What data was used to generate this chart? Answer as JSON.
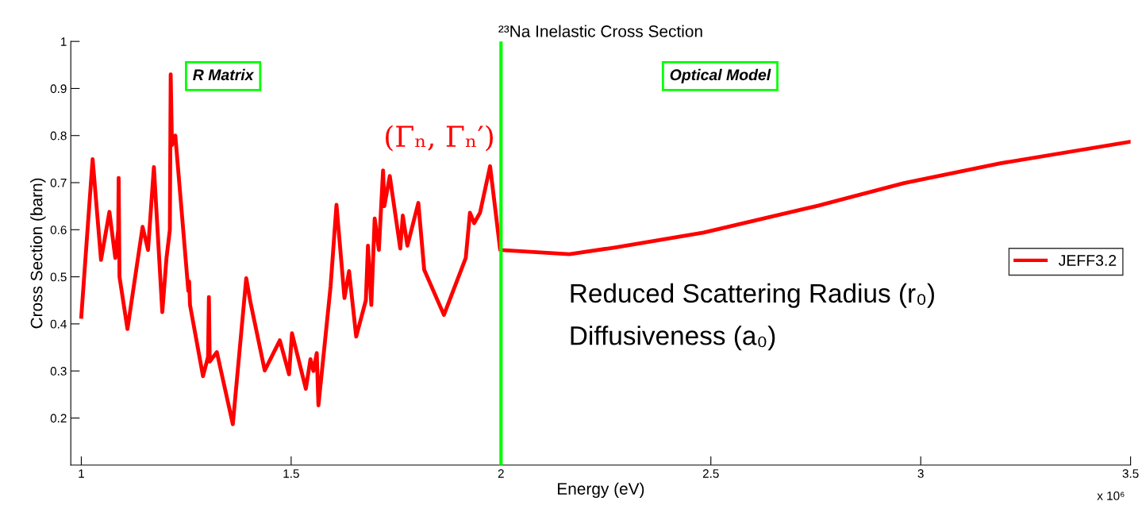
{
  "chart_data": {
    "type": "line",
    "title": "²³Na Inelastic Cross Section",
    "xlabel": "Energy (eV)",
    "ylabel": "Cross Section (barn)",
    "xlim": [
      0.975,
      3.5
    ],
    "ylim": [
      0.1,
      1
    ],
    "xticks": [
      1,
      1.5,
      2,
      2.5,
      3,
      3.5
    ],
    "yticks": [
      0.2,
      0.3,
      0.4,
      0.5,
      0.6,
      0.7,
      0.8,
      0.9,
      1
    ],
    "x": [
      1.0,
      1.01,
      1.027,
      1.047,
      1.067,
      1.081,
      1.088,
      1.089,
      1.091,
      1.11,
      1.146,
      1.159,
      1.173,
      1.193,
      1.203,
      1.211,
      1.213,
      1.216,
      1.224,
      1.255,
      1.257,
      1.259,
      1.29,
      1.302,
      1.304,
      1.306,
      1.323,
      1.361,
      1.393,
      1.403,
      1.437,
      1.473,
      1.495,
      1.502,
      1.535,
      1.546,
      1.553,
      1.561,
      1.565,
      1.594,
      1.608,
      1.627,
      1.638,
      1.655,
      1.678,
      1.683,
      1.691,
      1.699,
      1.709,
      1.719,
      1.722,
      1.735,
      1.76,
      1.766,
      1.777,
      1.803,
      1.817,
      1.864,
      1.916,
      1.926,
      1.936,
      1.95,
      1.974,
      1.998,
      2.0,
      2.163,
      2.27,
      2.483,
      2.755,
      2.96,
      3.19,
      3.5
    ],
    "series": [
      {
        "name": "JEFF3.2",
        "color": "#ff0000",
        "values": [
          0.415,
          0.54,
          0.75,
          0.536,
          0.638,
          0.54,
          0.6,
          0.71,
          0.5,
          0.389,
          0.606,
          0.557,
          0.733,
          0.425,
          0.54,
          0.6,
          0.93,
          0.78,
          0.8,
          0.47,
          0.49,
          0.44,
          0.289,
          0.33,
          0.457,
          0.32,
          0.34,
          0.187,
          0.497,
          0.446,
          0.301,
          0.365,
          0.293,
          0.38,
          0.262,
          0.325,
          0.3,
          0.338,
          0.227,
          0.48,
          0.653,
          0.455,
          0.512,
          0.373,
          0.45,
          0.566,
          0.44,
          0.624,
          0.557,
          0.726,
          0.65,
          0.714,
          0.56,
          0.63,
          0.566,
          0.657,
          0.515,
          0.419,
          0.54,
          0.636,
          0.614,
          0.636,
          0.735,
          0.557,
          0.557,
          0.548,
          0.562,
          0.594,
          0.651,
          0.699,
          0.741,
          0.787
        ]
      }
    ],
    "ref_lines": [
      {
        "axis": "x",
        "value": 2,
        "color": "#00ff00"
      }
    ],
    "annotations": [
      "R Matrix",
      "Optical Model",
      "(Γₙ, Γₙ′)",
      "Reduced Scattering Radius (r₀)",
      "Diffusiveness (a₀)",
      "x 10⁶"
    ],
    "legend": "right"
  }
}
